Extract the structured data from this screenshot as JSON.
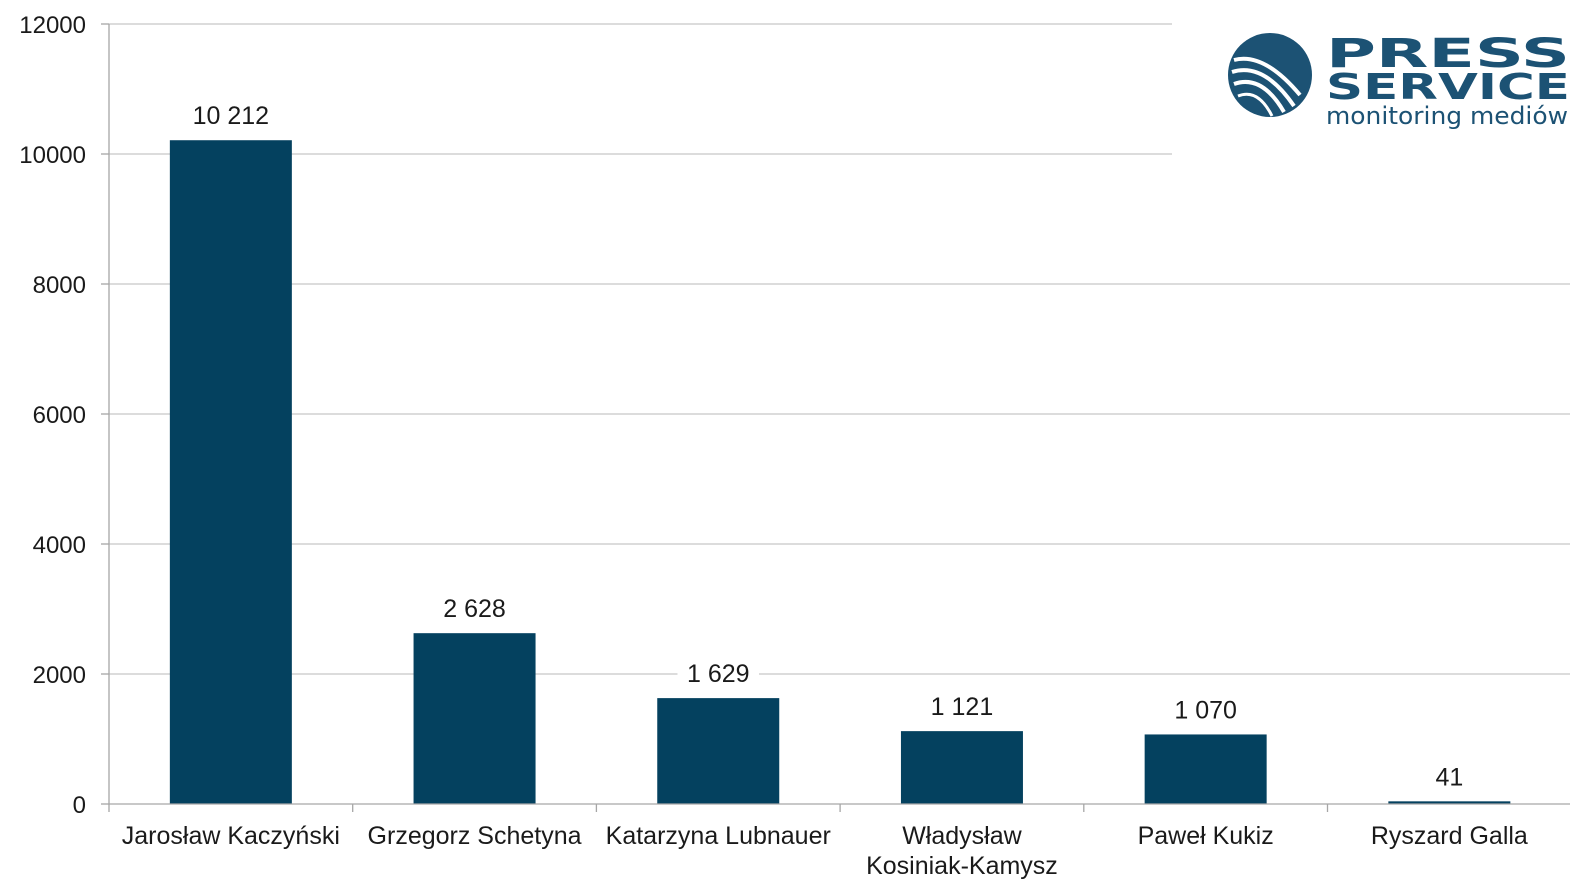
{
  "chart_data": {
    "type": "bar",
    "categories": [
      "Jarosław Kaczyński",
      "Grzegorz Schetyna",
      "Katarzyna Lubnauer",
      "Władysław Kosiniak-Kamysz",
      "Paweł Kukiz",
      "Ryszard Galla"
    ],
    "category_lines": [
      [
        "Jarosław Kaczyński"
      ],
      [
        "Grzegorz Schetyna"
      ],
      [
        "Katarzyna Lubnauer"
      ],
      [
        "Władysław",
        "Kosiniak-Kamysz"
      ],
      [
        "Paweł Kukiz"
      ],
      [
        "Ryszard Galla"
      ]
    ],
    "values": [
      10212,
      2628,
      1629,
      1121,
      1070,
      41
    ],
    "data_labels": [
      "10 212",
      "2 628",
      "1 629",
      "1 121",
      "1 070",
      "41"
    ],
    "y_ticks": [
      0,
      2000,
      4000,
      6000,
      8000,
      10000,
      12000
    ],
    "ylim": [
      0,
      12000
    ],
    "grid": true,
    "legend": "none",
    "bar_color": "#04415f"
  },
  "logo": {
    "line1": "PRESS",
    "line2": "SERVICE",
    "tagline": "monitoring mediów",
    "color": "#1c5274"
  }
}
